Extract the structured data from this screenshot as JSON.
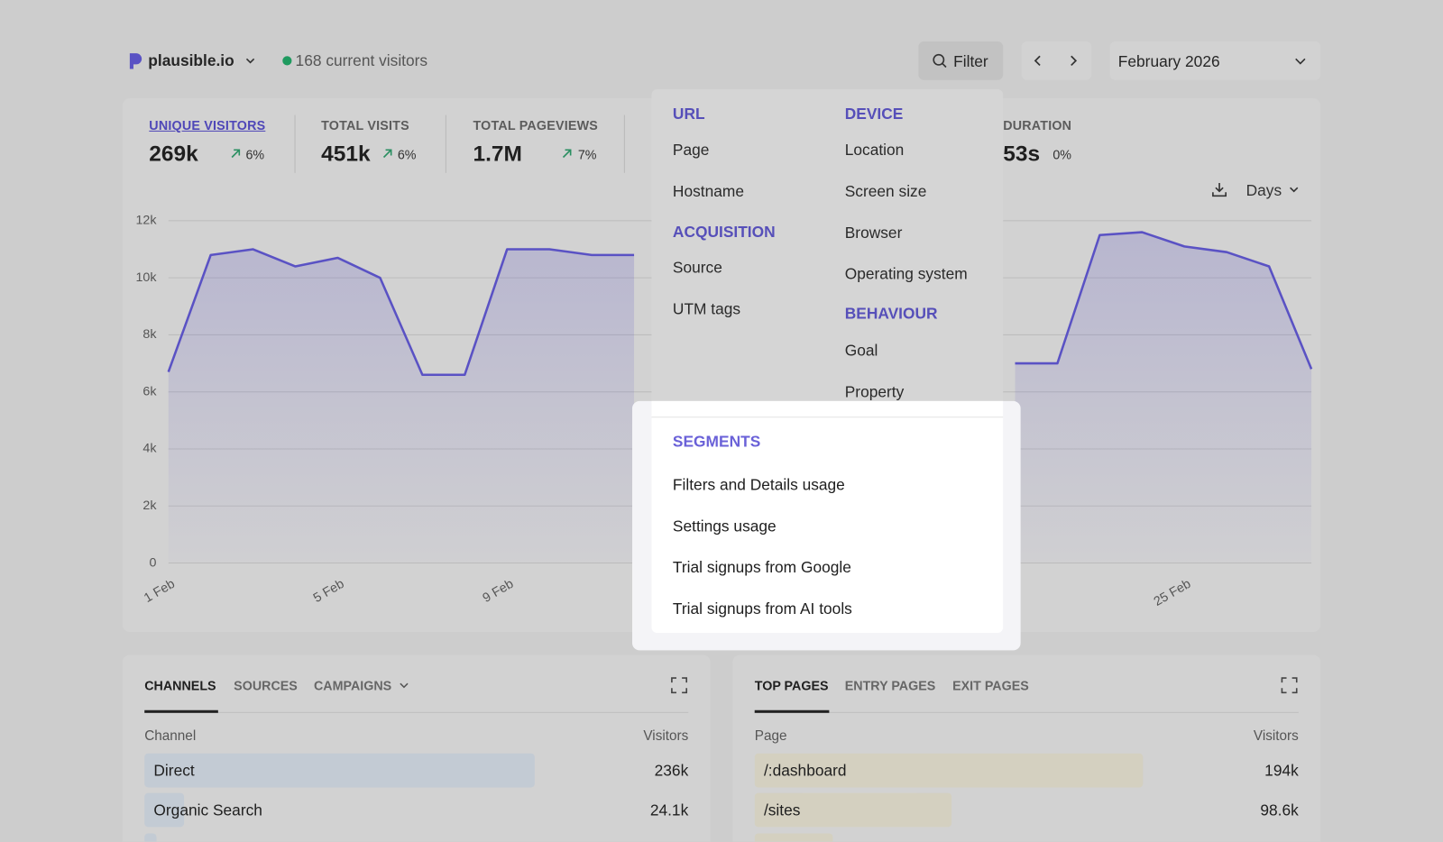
{
  "header": {
    "site": "plausible.io",
    "current_visitors": "168 current visitors",
    "filter_button": "Filter",
    "period": "February 2026"
  },
  "metrics": [
    {
      "label": "UNIQUE VISITORS",
      "value": "269k",
      "change": "6%"
    },
    {
      "label": "TOTAL VISITS",
      "value": "451k",
      "change": "6%"
    },
    {
      "label": "TOTAL PAGEVIEWS",
      "value": "1.7M",
      "change": "7%"
    },
    {
      "label": "DURATION",
      "value": "53s",
      "change": "0%"
    }
  ],
  "chart_data": {
    "type": "line",
    "interval": "Days",
    "categories": [
      "1 Feb",
      null,
      null,
      null,
      "5 Feb",
      null,
      null,
      null,
      "9 Feb",
      null,
      null,
      null,
      null,
      null,
      null,
      null,
      null,
      null,
      null,
      null,
      null,
      null,
      null,
      null,
      "25 Feb",
      null,
      null,
      null
    ],
    "values": [
      6700,
      10800,
      11000,
      10400,
      10700,
      10000,
      6600,
      6600,
      11000,
      11000,
      10800,
      10800,
      null,
      null,
      null,
      null,
      null,
      null,
      null,
      null,
      7000,
      7000,
      11500,
      11600,
      11100,
      10900,
      10400,
      6800
    ],
    "color": "#5a52c4",
    "ylim": [
      0,
      12000
    ],
    "yticks": [
      0,
      {
        "value": 2000,
        "label": "2k"
      },
      {
        "value": 4000,
        "label": "4k"
      },
      {
        "value": 6000,
        "label": "6k"
      },
      {
        "value": 8000,
        "label": "8k"
      },
      {
        "value": 10000,
        "label": "10k"
      },
      {
        "value": 12000,
        "label": "12k"
      }
    ],
    "grid": true
  },
  "filter_menu": {
    "groups": [
      {
        "title": "URL",
        "items": [
          "Page",
          "Hostname"
        ]
      },
      {
        "title": "ACQUISITION",
        "items": [
          "Source",
          "UTM tags"
        ]
      },
      {
        "title": "DEVICE",
        "items": [
          "Location",
          "Screen size",
          "Browser",
          "Operating system"
        ]
      },
      {
        "title": "BEHAVIOUR",
        "items": [
          "Goal",
          "Property"
        ]
      }
    ],
    "segments": {
      "title": "SEGMENTS",
      "items": [
        "Filters and Details usage",
        "Settings usage",
        "Trial signups from Google",
        "Trial signups from AI tools"
      ]
    }
  },
  "sources_panel": {
    "tabs": [
      "CHANNELS",
      "SOURCES",
      "CAMPAIGNS"
    ],
    "columns": [
      "Channel",
      "Visitors"
    ],
    "rows": [
      [
        "Direct",
        "236k"
      ],
      [
        "Organic Search",
        "24.1k"
      ]
    ]
  },
  "pages_panel": {
    "tabs": [
      "TOP PAGES",
      "ENTRY PAGES",
      "EXIT PAGES"
    ],
    "columns": [
      "Page",
      "Visitors"
    ],
    "rows": [
      [
        "/:dashboard",
        "194k"
      ],
      [
        "/sites",
        "98.6k"
      ]
    ]
  }
}
